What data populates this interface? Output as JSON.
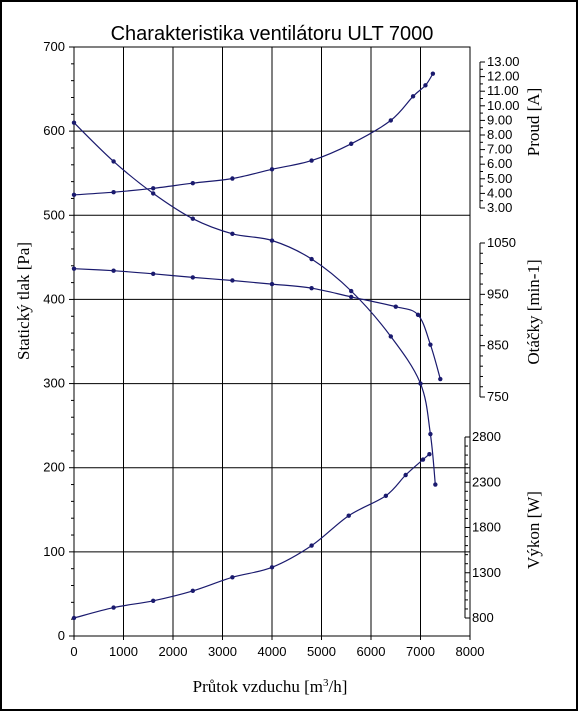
{
  "chart_data": {
    "type": "line",
    "title": "Charakteristika ventilátoru ULT 7000",
    "xlabel": "Průtok vzduchu [m3/h]",
    "xlim": [
      0,
      8000
    ],
    "xticks": [
      "0",
      "1000",
      "2000",
      "3000",
      "4000",
      "5000",
      "6000",
      "7000",
      "8000"
    ],
    "grid": true,
    "line_color": "#1a1a6e",
    "axes": {
      "pressure": {
        "label": "Statický tlak [Pa]",
        "position": "left",
        "range": [
          0,
          700
        ],
        "ticks": [
          "0",
          "100",
          "200",
          "300",
          "400",
          "500",
          "600",
          "700"
        ]
      },
      "current": {
        "label": "Proud [A]",
        "position": "right",
        "range": [
          3.0,
          12.0
        ],
        "ticks": [
          "3.00",
          "4.00",
          "5.00",
          "6.00",
          "7.00",
          "8.00",
          "9.00",
          "10.00",
          "11.00",
          "12.00",
          "13.00"
        ]
      },
      "speed": {
        "label": "Otáčky [min-1]",
        "position": "right",
        "range": [
          750,
          1050
        ],
        "ticks": [
          "750",
          "850",
          "950",
          "1050"
        ]
      },
      "power": {
        "label": "Výkon [W]",
        "position": "right",
        "range": [
          800,
          2800
        ],
        "ticks": [
          "800",
          "1300",
          "1800",
          "2300",
          "2800"
        ]
      }
    },
    "series": [
      {
        "axis": "pressure",
        "x": [
          0,
          800,
          1600,
          2400,
          3200,
          4000,
          4800,
          5600,
          6400,
          7000,
          7200,
          7300
        ],
        "y": [
          610,
          564,
          526,
          496,
          478,
          470,
          448,
          410,
          356,
          300,
          240,
          180
        ]
      },
      {
        "axis": "current",
        "x": [
          0,
          800,
          1600,
          2400,
          3200,
          4000,
          4800,
          5600,
          6400,
          6850,
          7100,
          7250
        ],
        "y": [
          3.9,
          4.08,
          4.35,
          4.7,
          5.02,
          5.65,
          6.25,
          7.4,
          9.0,
          10.65,
          11.4,
          12.2
        ]
      },
      {
        "axis": "speed",
        "x": [
          0,
          800,
          1600,
          2400,
          3200,
          4000,
          4800,
          5600,
          6500,
          6950,
          7200,
          7400
        ],
        "y": [
          1000,
          996,
          990,
          983,
          977,
          970,
          962,
          945,
          926,
          910,
          852,
          785
        ]
      },
      {
        "axis": "power",
        "x": [
          0,
          800,
          1600,
          2400,
          3200,
          4000,
          4800,
          5550,
          6300,
          6700,
          7050,
          7180
        ],
        "y": [
          800,
          915,
          990,
          1100,
          1250,
          1360,
          1600,
          1930,
          2150,
          2380,
          2550,
          2610
        ]
      }
    ]
  }
}
